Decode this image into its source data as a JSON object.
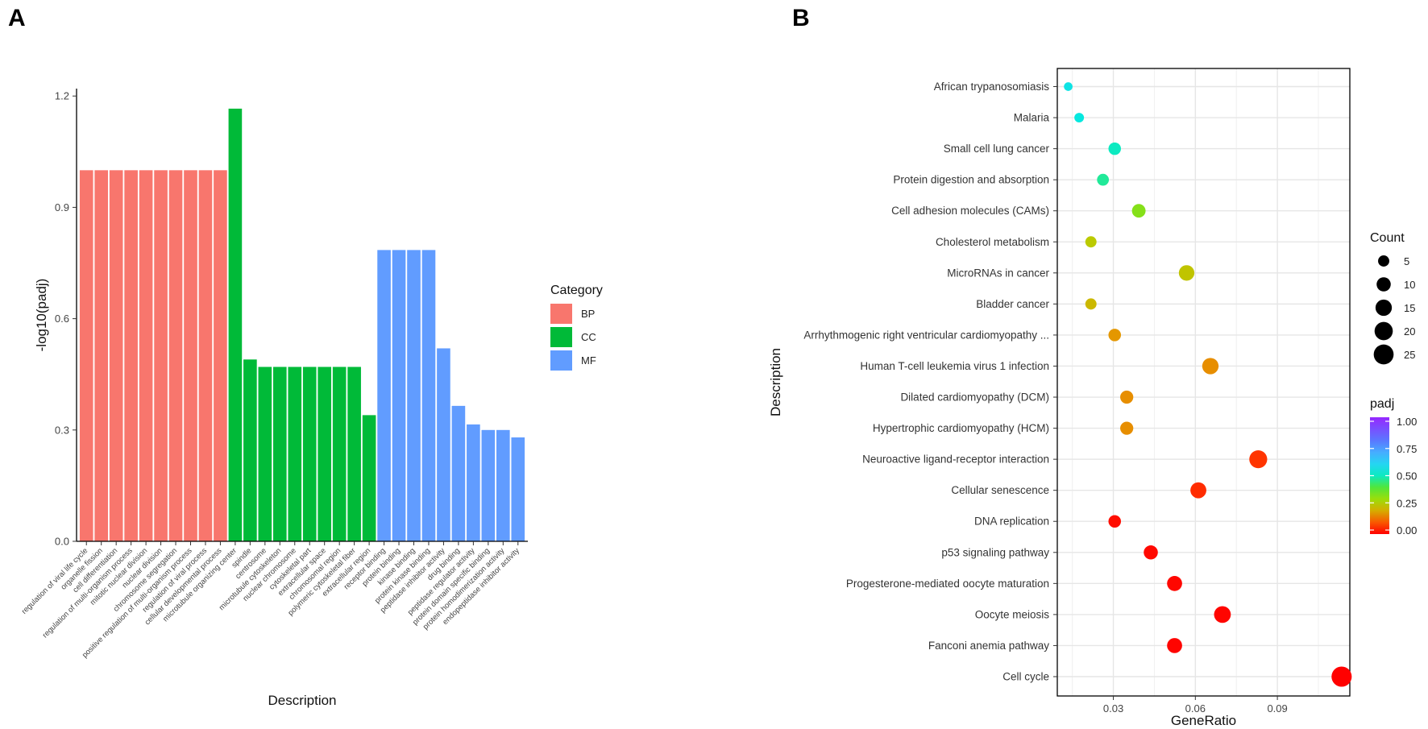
{
  "panels": {
    "a_label": "A",
    "b_label": "B"
  },
  "chart_data": [
    {
      "type": "bar",
      "xlabel": "Description",
      "ylabel": "-log10(padj)",
      "ylim": [
        0,
        1.22
      ],
      "yticks": [
        "0.0",
        "0.3",
        "0.6",
        "0.9",
        "1.2"
      ],
      "legend": {
        "title": "Category",
        "placement": "right",
        "items": [
          {
            "name": "BP",
            "color": "#F8766D"
          },
          {
            "name": "CC",
            "color": "#00BA38"
          },
          {
            "name": "MF",
            "color": "#619CFF"
          }
        ]
      },
      "categories": [
        "regulation of viral life cycle",
        "organelle fission",
        "cell differentiation",
        "regulation of multi-organism process",
        "mitotic nuclear division",
        "nuclear division",
        "chromosome segregation",
        "positive regulation of multi-organism process",
        "regulation of viral process",
        "cellular developmental process",
        "microtubule organizing center",
        "spindle",
        "centrosome",
        "microtubule cytoskeleton",
        "nuclear chromosome",
        "cytoskeletal part",
        "extracellular space",
        "chromosomal region",
        "polymeric cytoskeletal fiber",
        "extracellular region",
        "receptor binding",
        "protein binding",
        "kinase binding",
        "protein kinase binding",
        "peptidase inhibitor activity",
        "drug binding",
        "peptidase regulator activity",
        "protein domain specific binding",
        "protein homodimerization activity",
        "endopeptidase inhibitor activity"
      ],
      "groups": [
        "BP",
        "BP",
        "BP",
        "BP",
        "BP",
        "BP",
        "BP",
        "BP",
        "BP",
        "BP",
        "CC",
        "CC",
        "CC",
        "CC",
        "CC",
        "CC",
        "CC",
        "CC",
        "CC",
        "CC",
        "MF",
        "MF",
        "MF",
        "MF",
        "MF",
        "MF",
        "MF",
        "MF",
        "MF",
        "MF"
      ],
      "values": [
        1.0,
        1.0,
        1.0,
        1.0,
        1.0,
        1.0,
        1.0,
        1.0,
        1.0,
        1.0,
        1.166,
        0.49,
        0.47,
        0.47,
        0.47,
        0.47,
        0.47,
        0.47,
        0.47,
        0.34,
        0.785,
        0.785,
        0.785,
        0.785,
        0.52,
        0.365,
        0.315,
        0.3,
        0.3,
        0.28
      ]
    },
    {
      "type": "scatter",
      "xlabel": "GeneRatio",
      "ylabel": "Description",
      "xticks": [
        "0.03",
        "0.06",
        "0.09"
      ],
      "xlim": [
        0.0095,
        0.1165
      ],
      "grid": true,
      "size_legend": {
        "title": "Count",
        "placement": "right",
        "values": [
          "5",
          "10",
          "15",
          "20",
          "25"
        ]
      },
      "color_legend": {
        "title": "padj",
        "placement": "right",
        "ticks": [
          "1.00",
          "0.75",
          "0.50",
          "0.25",
          "0.00"
        ]
      },
      "points": [
        {
          "label": "African trypanosomiasis",
          "x": 0.0135,
          "count": 2,
          "padj": 0.55
        },
        {
          "label": "Malaria",
          "x": 0.0175,
          "count": 3,
          "padj": 0.53
        },
        {
          "label": "Small cell lung cancer",
          "x": 0.0305,
          "count": 7,
          "padj": 0.5
        },
        {
          "label": "Protein digestion and absorption",
          "x": 0.0262,
          "count": 6,
          "padj": 0.47
        },
        {
          "label": "Cell adhesion molecules (CAMs)",
          "x": 0.0393,
          "count": 9,
          "padj": 0.33
        },
        {
          "label": "Cholesterol metabolism",
          "x": 0.0218,
          "count": 5,
          "padj": 0.25
        },
        {
          "label": "MicroRNAs in cancer",
          "x": 0.0568,
          "count": 13,
          "padj": 0.24
        },
        {
          "label": "Bladder cancer",
          "x": 0.0218,
          "count": 5,
          "padj": 0.22
        },
        {
          "label": "Arrhythmogenic right ventricular cardiomyopathy ...",
          "x": 0.0305,
          "count": 7,
          "padj": 0.17
        },
        {
          "label": "Human T-cell leukemia virus 1 infection",
          "x": 0.0655,
          "count": 15,
          "padj": 0.16
        },
        {
          "label": "Dilated cardiomyopathy (DCM)",
          "x": 0.0349,
          "count": 8,
          "padj": 0.16
        },
        {
          "label": "Hypertrophic cardiomyopathy (HCM)",
          "x": 0.0349,
          "count": 8,
          "padj": 0.16
        },
        {
          "label": "Neuroactive ligand-receptor interaction",
          "x": 0.083,
          "count": 19,
          "padj": 0.06
        },
        {
          "label": "Cellular senescence",
          "x": 0.0611,
          "count": 14,
          "padj": 0.05
        },
        {
          "label": "DNA replication",
          "x": 0.0305,
          "count": 7,
          "padj": 0.015
        },
        {
          "label": "p53 signaling pathway",
          "x": 0.0437,
          "count": 10,
          "padj": 0.01
        },
        {
          "label": "Progesterone-mediated oocyte maturation",
          "x": 0.0524,
          "count": 12,
          "padj": 0.008
        },
        {
          "label": "Oocyte meiosis",
          "x": 0.0699,
          "count": 16,
          "padj": 0.006
        },
        {
          "label": "Fanconi anemia pathway",
          "x": 0.0524,
          "count": 12,
          "padj": 0.005
        },
        {
          "label": "Cell cycle",
          "x": 0.1135,
          "count": 26,
          "padj": 0.001
        }
      ]
    }
  ]
}
